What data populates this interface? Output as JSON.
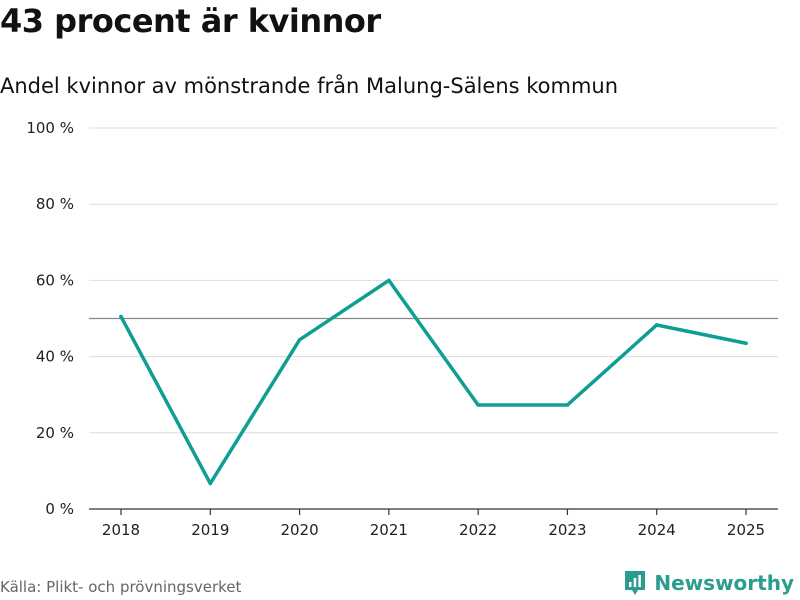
{
  "title": "43 procent är kvinnor",
  "subtitle": "Andel kvinnor av mönstrande från Malung-Sälens kommun",
  "source": "Källa: Plikt- och prövningsverket",
  "brand": "Newsworthy",
  "colors": {
    "line": "#0f9e94",
    "reference": "#888888",
    "grid": "#dddddd",
    "brand": "#2a9d8f"
  },
  "chart_data": {
    "type": "line",
    "x": [
      "2018",
      "2019",
      "2020",
      "2021",
      "2022",
      "2023",
      "2024",
      "2025"
    ],
    "series": [
      {
        "values": [
          50.5,
          6.7,
          44.4,
          60.0,
          27.3,
          27.3,
          48.3,
          43.5
        ]
      }
    ],
    "reference_line": 50,
    "ylim": [
      0,
      100
    ],
    "yticks": [
      0,
      20,
      40,
      60,
      80,
      100
    ],
    "ytick_labels": [
      "0 %",
      "20 %",
      "40 %",
      "60 %",
      "80 %",
      "100 %"
    ],
    "grid": true,
    "xlabel": "",
    "ylabel": ""
  }
}
